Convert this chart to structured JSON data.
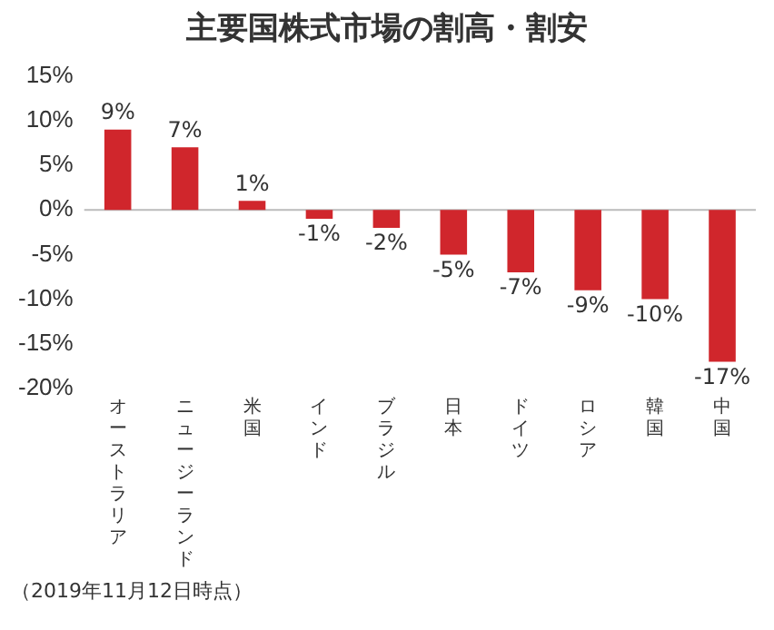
{
  "chart_data": {
    "type": "bar",
    "title": "主要国株式市場の割高・割安",
    "categories": [
      "オーストラリア",
      "ニュージーランド",
      "米国",
      "インド",
      "ブラジル",
      "日本",
      "ドイツ",
      "ロシア",
      "韓国",
      "中国"
    ],
    "values": [
      9,
      7,
      1,
      -1,
      -2,
      -5,
      -7,
      -9,
      -10,
      -17
    ],
    "value_labels": [
      "9%",
      "7%",
      "1%",
      "-1%",
      "-2%",
      "-5%",
      "-7%",
      "-9%",
      "-10%",
      "-17%"
    ],
    "color": "#d0262c",
    "ylim": [
      -20,
      15
    ],
    "yticks": [
      {
        "value": 15,
        "label": "15%"
      },
      {
        "value": 10,
        "label": "10%"
      },
      {
        "value": 5,
        "label": "5%"
      },
      {
        "value": 0,
        "label": "0%"
      },
      {
        "value": -5,
        "label": "-5%"
      },
      {
        "value": -10,
        "label": "-10%"
      },
      {
        "value": -15,
        "label": "-15%"
      },
      {
        "value": -20,
        "label": "-20%"
      }
    ],
    "grid": false,
    "legend": false,
    "ref_lines": [
      {
        "axis": "y",
        "value": 0,
        "color": "#bbbbbb"
      }
    ],
    "annotations": [
      "（2019年11月12日時点）"
    ]
  }
}
